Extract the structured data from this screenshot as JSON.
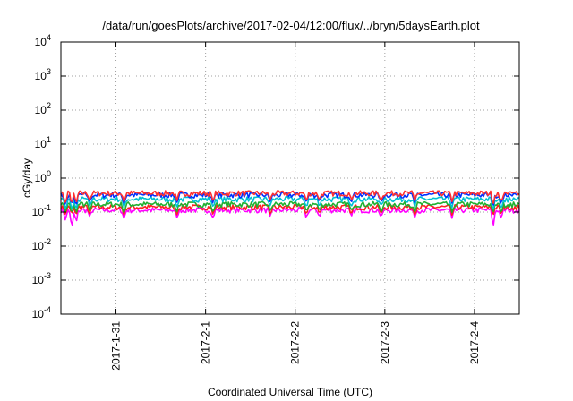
{
  "chart_data": {
    "type": "line",
    "title": "/data/run/goesPlots/archive/2017-02-04/12:00/flux/../bryn/5daysEarth.plot",
    "xlabel": "Coordinated Universal Time (UTC)",
    "ylabel": "cGy/day",
    "yscale": "log",
    "ylim": [
      0.0001,
      10000
    ],
    "yticks": [
      {
        "base": "10",
        "exp": "-4"
      },
      {
        "base": "10",
        "exp": "-3"
      },
      {
        "base": "10",
        "exp": "-2"
      },
      {
        "base": "10",
        "exp": "-1"
      },
      {
        "base": "10",
        "exp": "0"
      },
      {
        "base": "10",
        "exp": "1"
      },
      {
        "base": "10",
        "exp": "2"
      },
      {
        "base": "10",
        "exp": "3"
      },
      {
        "base": "10",
        "exp": "4"
      }
    ],
    "xlim": [
      "2017-01-30T09:15",
      "2017-02-04T12:00"
    ],
    "xticks": [
      "2017-1-31",
      "2017-2-1",
      "2017-2-2",
      "2017-2-3",
      "2017-2-4"
    ],
    "grid": true,
    "series": [
      {
        "color": "#ff00ff",
        "baseline": 0.115,
        "dip_floor": 0.016
      },
      {
        "color": "#ff2020",
        "baseline": 0.14,
        "dip_floor": 0.08
      },
      {
        "color": "#20b030",
        "baseline": 0.17,
        "dip_floor": 0.09
      },
      {
        "color": "#00c0d0",
        "baseline": 0.24,
        "dip_floor": 0.1
      },
      {
        "color": "#0030ff",
        "baseline": 0.32,
        "dip_floor": 0.14
      },
      {
        "color": "#ff3030",
        "baseline": 0.36,
        "dip_floor": 0.16
      }
    ],
    "dips": [
      {
        "t": "2017-01-30T10:30",
        "depth": 0.45
      },
      {
        "t": "2017-01-30T12:10",
        "depth": 0.14
      },
      {
        "t": "2017-01-30T13:20",
        "depth": 0.35
      },
      {
        "t": "2017-01-30T17:00",
        "depth": 0.6
      },
      {
        "t": "2017-01-31T02:10",
        "depth": 0.55
      },
      {
        "t": "2017-01-31T16:20",
        "depth": 0.6
      },
      {
        "t": "2017-02-01T02:00",
        "depth": 0.55
      },
      {
        "t": "2017-02-01T17:20",
        "depth": 0.6
      },
      {
        "t": "2017-02-02T03:00",
        "depth": 0.55
      },
      {
        "t": "2017-02-02T06:30",
        "depth": 0.6
      },
      {
        "t": "2017-02-02T15:00",
        "depth": 0.6
      },
      {
        "t": "2017-02-02T23:00",
        "depth": 0.55
      },
      {
        "t": "2017-02-03T08:00",
        "depth": 0.6
      },
      {
        "t": "2017-02-03T18:00",
        "depth": 0.55
      },
      {
        "t": "2017-02-04T05:00",
        "depth": 0.25
      },
      {
        "t": "2017-02-04T07:10",
        "depth": 0.5
      }
    ]
  }
}
